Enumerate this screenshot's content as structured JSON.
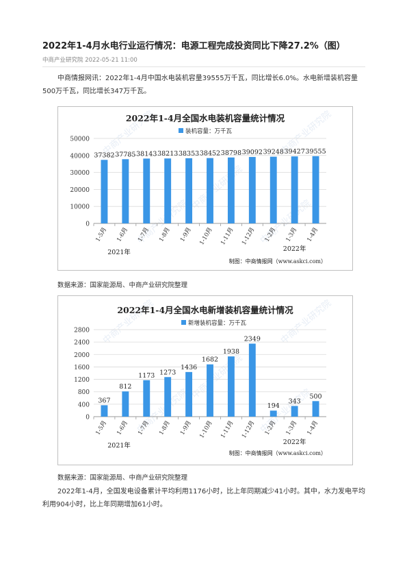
{
  "article": {
    "title": "2022年1-4月水电行业运行情况：电源工程完成投资同比下降27.2%（图）",
    "meta": "中商产业研究院 2022-05-21 11:00",
    "para1": "中商情报网讯：2022年1-4月中国水电装机容量39555万千瓦，同比增长6.0%。水电新增装机容量500万千瓦，同比增长347万千瓦。",
    "source1": "数据来源：国家能源局、中商产业研究院整理",
    "source2": "数据来源：国家能源局、中商产业研究院整理",
    "para2": "2022年1-4月，全国发电设备累计平均利用1176小时，比上年同期减少41小时。其中，水力发电平均利用904小时，比上年同期增加61小时。"
  },
  "watermark": "中商产业研究院",
  "colors": {
    "bar": "#3a96e6",
    "grid": "#d9d9d9"
  },
  "chart_data": [
    {
      "type": "bar",
      "title": "2022年1-4月全国水电装机容量统计情况",
      "series": [
        {
          "name": "装机容量：万千瓦",
          "values": [
            37382,
            37785,
            38143,
            38213,
            38353,
            38452,
            38798,
            39092,
            39248,
            39427,
            39555
          ]
        }
      ],
      "categories": [
        "1-5月",
        "1-6月",
        "1-7月",
        "1-8月",
        "1-9月",
        "1-10月",
        "1-11月",
        "1-12月",
        "1-2月",
        "1-3月",
        "1-4月"
      ],
      "year_labels": [
        "2021年",
        "2022年"
      ],
      "ylim": [
        0,
        50000
      ],
      "yticks": [
        0,
        10000,
        20000,
        30000,
        40000,
        50000
      ],
      "credit": "制图：中商情报网（www.askci.com）",
      "grid": true,
      "legend": "top-center"
    },
    {
      "type": "bar",
      "title": "2022年1-4月全国水电新增装机容量统计情况",
      "series": [
        {
          "name": "新增装机容量：万千瓦",
          "values": [
            367,
            812,
            1173,
            1273,
            1436,
            1682,
            1938,
            2349,
            194,
            343,
            500
          ]
        }
      ],
      "categories": [
        "1-5月",
        "1-6月",
        "1-7月",
        "1-8月",
        "1-9月",
        "1-10月",
        "1-11月",
        "1-12月",
        "1-2月",
        "1-3月",
        "1-4月"
      ],
      "year_labels": [
        "2021年",
        "2022年"
      ],
      "ylim": [
        0,
        2800
      ],
      "yticks": [
        0,
        400,
        800,
        1200,
        1600,
        2000,
        2400,
        2800
      ],
      "credit": "制图：中商情报网（www.askci.com）",
      "grid": true,
      "legend": "top-center"
    }
  ]
}
